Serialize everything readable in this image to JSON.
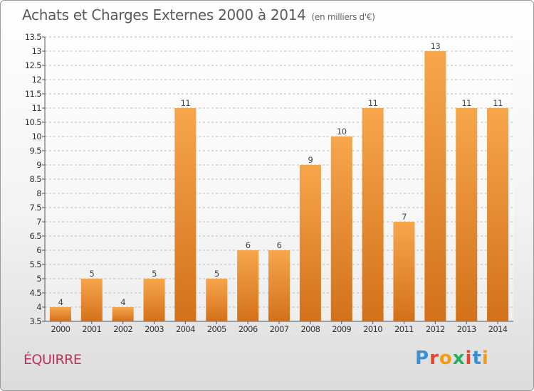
{
  "header": {
    "title": "Achats et Charges Externes 2000 à 2014",
    "units": "(en milliers d'€)"
  },
  "footer": {
    "commune": "ÉQUIRRE",
    "logo": "Proxiti",
    "logo_colors": [
      "#3a8fd6",
      "#e8442d",
      "#f39c12",
      "#27ae60",
      "#e8442d",
      "#3a8fd6",
      "#f39c12"
    ]
  },
  "colors": {
    "bar_top": "#f7a64c",
    "bar_bottom": "#d3711a",
    "grid": "#bdbdbd"
  },
  "chart_data": {
    "type": "bar",
    "title": "Achats et Charges Externes 2000 à 2014",
    "subtitle": "(en milliers d'€)",
    "categories": [
      "2000",
      "2001",
      "2002",
      "2003",
      "2004",
      "2005",
      "2006",
      "2007",
      "2008",
      "2009",
      "2010",
      "2011",
      "2012",
      "2013",
      "2014"
    ],
    "values": [
      4,
      5,
      4,
      5,
      11,
      5,
      6,
      6,
      9,
      10,
      11,
      7,
      13,
      11,
      11
    ],
    "ylim": [
      3.5,
      13.5
    ],
    "yticks": [
      "3.5",
      "4",
      "4.5",
      "5",
      "5.5",
      "6",
      "6.5",
      "7",
      "7.5",
      "8",
      "8.5",
      "9",
      "9.5",
      "10",
      "10.5",
      "11",
      "11.5",
      "12",
      "12.5",
      "13",
      "13.5"
    ],
    "grid": "dashed horizontal",
    "xlabel": "",
    "ylabel": ""
  }
}
